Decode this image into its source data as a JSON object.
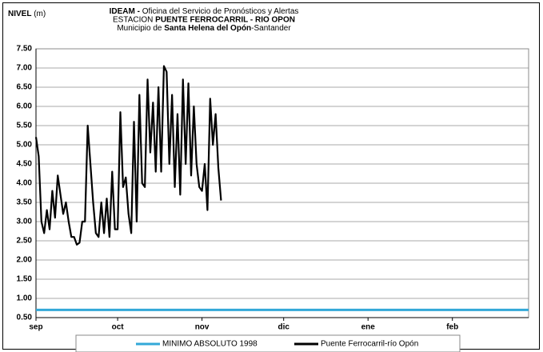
{
  "chart_data": {
    "type": "line",
    "y_label": [
      {
        "text": "NIVEL",
        "bold": true
      },
      {
        "text": " (m)",
        "bold": false
      }
    ],
    "title_lines": [
      [
        {
          "text": "IDEAM -",
          "bold": true
        },
        {
          "text": " Oficina del Servicio de Pronósticos y Alertas",
          "bold": false
        }
      ],
      [
        {
          "text": "ESTACION ",
          "bold": false
        },
        {
          "text": "PUENTE FERROCARRIL - RIO OPON",
          "bold": true
        }
      ],
      [
        {
          "text": "Municipio de ",
          "bold": false
        },
        {
          "text": "Santa Helena del Opón",
          "bold": true
        },
        {
          "text": "-Santander",
          "bold": false
        }
      ]
    ],
    "x": [
      0,
      1,
      2,
      3,
      4,
      5,
      6,
      7,
      8,
      9,
      10,
      11,
      12,
      13,
      14,
      15,
      16,
      17,
      18,
      19,
      20,
      21,
      22,
      23,
      24,
      25,
      26,
      27,
      28,
      29,
      30,
      31,
      32,
      33,
      34,
      35,
      36,
      37,
      38,
      39,
      40,
      41,
      42,
      43,
      44,
      45,
      46,
      47,
      48,
      49,
      50,
      51,
      52,
      53,
      54,
      55,
      56,
      57,
      58,
      59,
      60,
      61,
      62,
      63,
      64,
      65,
      66,
      67,
      68
    ],
    "series": [
      {
        "name": "Puente Ferrocarril-río Opón",
        "color": "#000000",
        "values": [
          5.2,
          4.7,
          3.0,
          2.7,
          3.3,
          2.8,
          3.8,
          3.1,
          4.2,
          3.7,
          3.2,
          3.5,
          3.0,
          2.6,
          2.6,
          2.4,
          2.45,
          3.0,
          3.0,
          5.5,
          4.5,
          3.5,
          2.7,
          2.6,
          3.5,
          2.7,
          3.6,
          2.6,
          4.3,
          2.8,
          2.8,
          5.85,
          3.9,
          4.15,
          3.2,
          2.7,
          5.6,
          3.0,
          6.3,
          4.0,
          3.9,
          6.7,
          4.8,
          6.1,
          4.3,
          6.5,
          4.3,
          7.05,
          6.9,
          4.5,
          6.3,
          3.9,
          5.8,
          3.7,
          6.7,
          4.5,
          6.6,
          4.2,
          6.0,
          4.5,
          3.9,
          3.8,
          4.5,
          3.3,
          6.2,
          5.0,
          5.8,
          4.4,
          3.55
        ]
      }
    ],
    "reference_lines": [
      {
        "name": "MINIMO ABSOLUTO 1998",
        "value": 0.7,
        "color": "#33a8d8"
      }
    ],
    "xlim": [
      0,
      181
    ],
    "xticks": [
      {
        "value": 0,
        "label": "sep"
      },
      {
        "value": 30,
        "label": "oct"
      },
      {
        "value": 61,
        "label": "nov"
      },
      {
        "value": 91,
        "label": "dic"
      },
      {
        "value": 122,
        "label": "ene"
      },
      {
        "value": 153,
        "label": "feb"
      }
    ],
    "ylim": [
      0.5,
      7.5
    ],
    "yticks": [
      {
        "value": 0.5,
        "label": "0.50"
      },
      {
        "value": 1,
        "label": "1.00"
      },
      {
        "value": 1.5,
        "label": "1.50"
      },
      {
        "value": 2,
        "label": "2.00"
      },
      {
        "value": 2.5,
        "label": "2.50"
      },
      {
        "value": 3,
        "label": "3.00"
      },
      {
        "value": 3.5,
        "label": "3.50"
      },
      {
        "value": 4,
        "label": "4.00"
      },
      {
        "value": 4.5,
        "label": "4.50"
      },
      {
        "value": 5,
        "label": "5.00"
      },
      {
        "value": 5.5,
        "label": "5.50"
      },
      {
        "value": 6,
        "label": "6.00"
      },
      {
        "value": 6.5,
        "label": "6.50"
      },
      {
        "value": 7,
        "label": "7.00"
      },
      {
        "value": 7.5,
        "label": "7.50"
      }
    ],
    "grid": true
  }
}
